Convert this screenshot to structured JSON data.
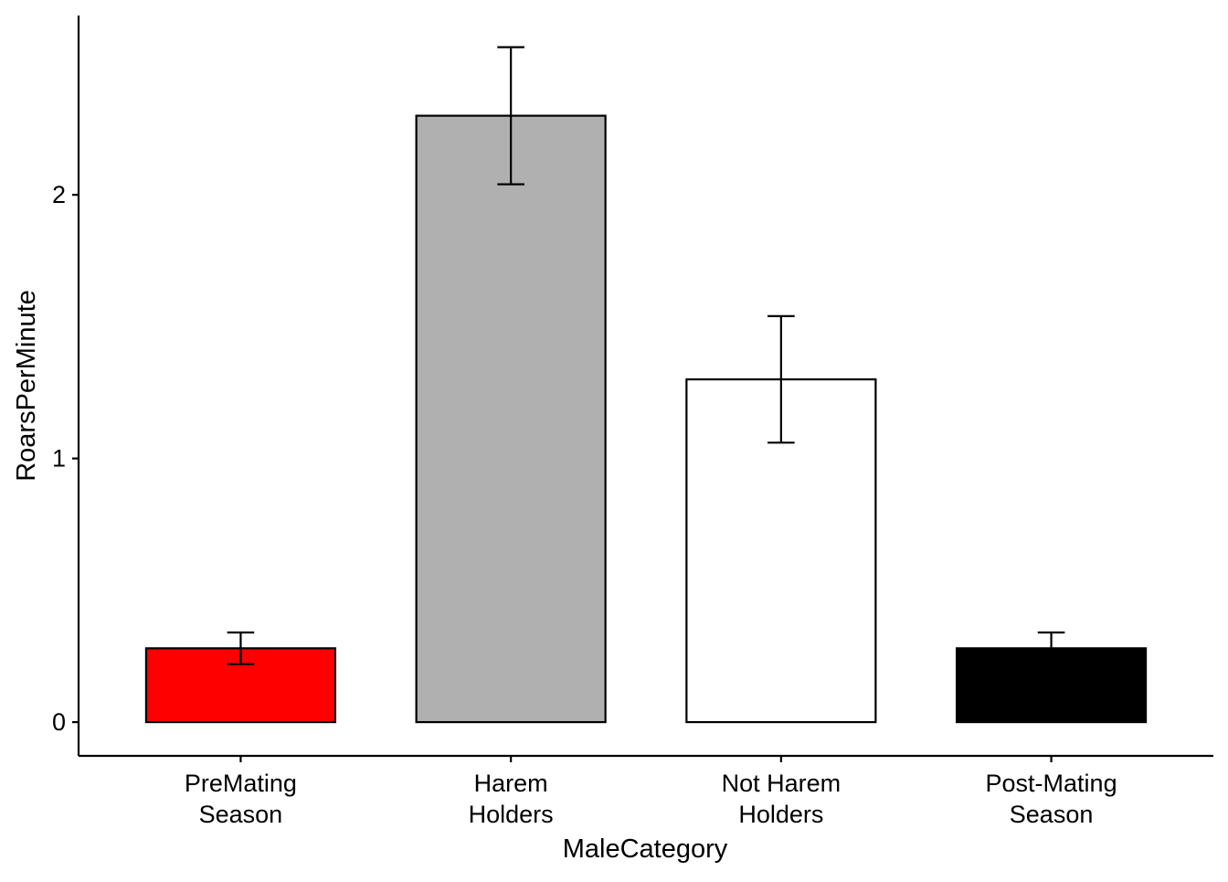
{
  "chart_data": {
    "type": "bar",
    "x_label": "MaleCategory",
    "y_label": "RoarsPerMinute",
    "categories": [
      "PreMating\nSeason",
      "Harem\nHolders",
      "Not Harem\nHolders",
      "Post-Mating\nSeason"
    ],
    "values": [
      0.28,
      2.3,
      1.3,
      0.28
    ],
    "errors": [
      0.06,
      0.26,
      0.24,
      0.06
    ],
    "colors": [
      "#ff0000",
      "#b0b0b0",
      "#ffffff",
      "#000000"
    ],
    "ylim": [
      -0.128,
      2.68
    ],
    "yticks": [
      0,
      1,
      2
    ],
    "grid": false
  }
}
